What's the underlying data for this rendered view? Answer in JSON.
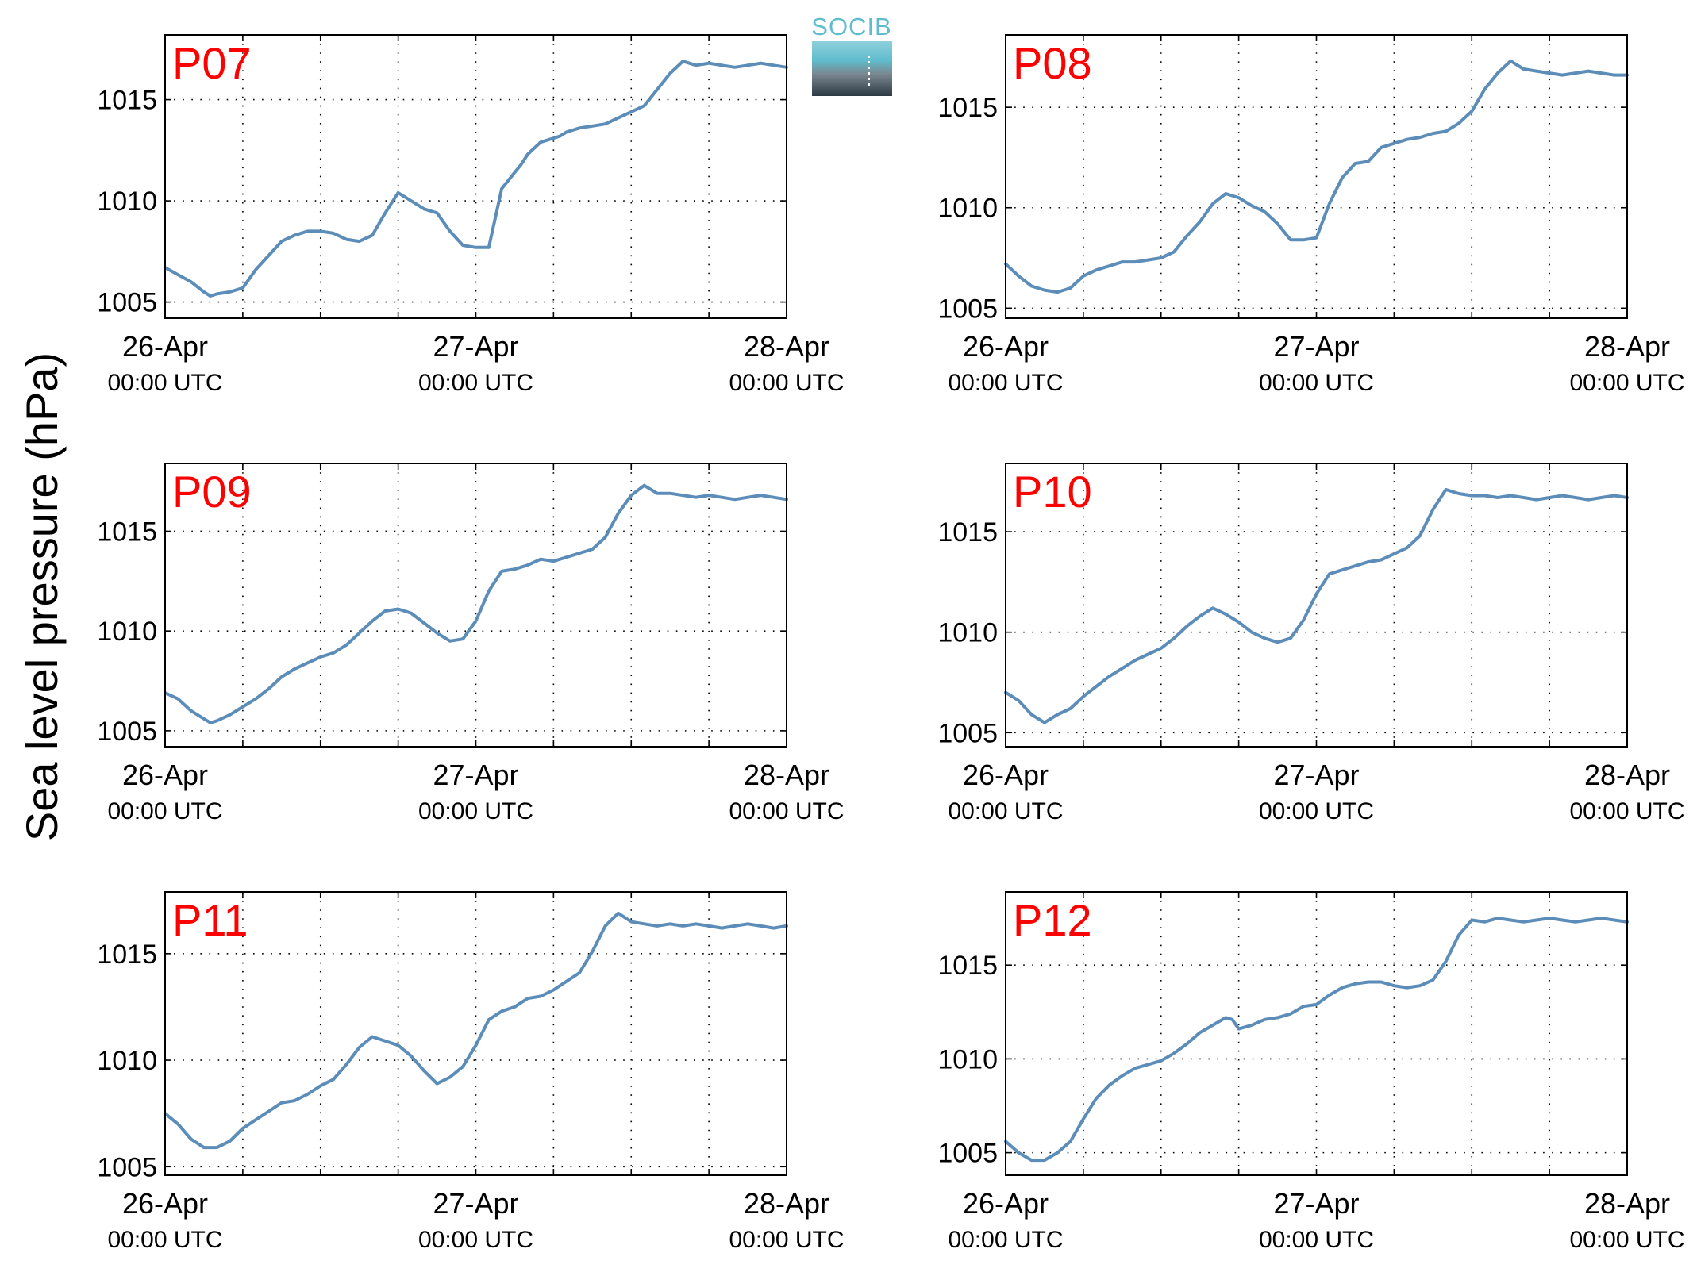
{
  "figure": {
    "ylabel": "Sea level pressure (hPa)",
    "logo_text": "SOCIB"
  },
  "chart_data": [
    {
      "type": "line",
      "panel_label": "P07",
      "xlim": [
        0,
        48
      ],
      "ylim": [
        1004.2,
        1018.2
      ],
      "yticks": [
        1005,
        1010,
        1015
      ],
      "xticks": [
        {
          "x": 0,
          "label": "26-Apr",
          "sublabel": "00:00 UTC"
        },
        {
          "x": 24,
          "label": "27-Apr",
          "sublabel": "00:00 UTC"
        },
        {
          "x": 48,
          "label": "28-Apr",
          "sublabel": "00:00 UTC"
        }
      ],
      "grid": true,
      "color": "#5b8db8",
      "x": [
        0,
        2,
        3,
        3.5,
        4,
        5,
        6,
        7,
        8,
        9,
        10,
        11,
        12,
        13,
        14,
        15,
        16,
        17,
        18,
        19,
        20,
        21,
        22,
        23,
        24,
        25,
        26,
        27,
        27.5,
        28,
        29,
        30,
        30.5,
        31,
        31.5,
        32,
        33,
        34,
        35,
        36,
        37,
        38,
        39,
        40,
        41,
        42,
        43,
        44,
        45,
        46,
        47,
        48
      ],
      "values": [
        1006.7,
        1006,
        1005.5,
        1005.3,
        1005.4,
        1005.5,
        1005.7,
        1006.6,
        1007.3,
        1008,
        1008.3,
        1008.5,
        1008.5,
        1008.4,
        1008.1,
        1008,
        1008.3,
        1009.4,
        1010.4,
        1010,
        1009.6,
        1009.4,
        1008.5,
        1007.8,
        1007.7,
        1007.7,
        1010.6,
        1011.4,
        1011.8,
        1012.3,
        1012.9,
        1013.1,
        1013.2,
        1013.4,
        1013.5,
        1013.6,
        1013.7,
        1013.8,
        1014.1,
        1014.4,
        1014.7,
        1015.5,
        1016.3,
        1016.9,
        1016.7,
        1016.8,
        1016.7,
        1016.6,
        1016.7,
        1016.8,
        1016.7,
        1016.6
      ]
    },
    {
      "type": "line",
      "panel_label": "P08",
      "xlim": [
        0,
        48
      ],
      "ylim": [
        1004.5,
        1018.6
      ],
      "yticks": [
        1005,
        1010,
        1015
      ],
      "xticks": [
        {
          "x": 0,
          "label": "26-Apr",
          "sublabel": "00:00 UTC"
        },
        {
          "x": 24,
          "label": "27-Apr",
          "sublabel": "00:00 UTC"
        },
        {
          "x": 48,
          "label": "28-Apr",
          "sublabel": "00:00 UTC"
        }
      ],
      "grid": true,
      "color": "#5b8db8",
      "x": [
        0,
        1,
        2,
        3,
        4,
        5,
        6,
        7,
        8,
        9,
        10,
        11,
        12,
        13,
        14,
        15,
        16,
        17,
        18,
        19,
        20,
        21,
        22,
        23,
        24,
        25,
        26,
        27,
        28,
        29,
        30,
        31,
        32,
        33,
        34,
        35,
        36,
        37,
        38,
        39,
        40,
        41,
        42,
        43,
        44,
        45,
        46,
        47,
        48
      ],
      "values": [
        1007.2,
        1006.6,
        1006.1,
        1005.9,
        1005.8,
        1006,
        1006.6,
        1006.9,
        1007.1,
        1007.3,
        1007.3,
        1007.4,
        1007.5,
        1007.8,
        1008.6,
        1009.3,
        1010.2,
        1010.7,
        1010.5,
        1010.1,
        1009.8,
        1009.2,
        1008.4,
        1008.4,
        1008.5,
        1010.2,
        1011.5,
        1012.2,
        1012.3,
        1013,
        1013.2,
        1013.4,
        1013.5,
        1013.7,
        1013.8,
        1014.2,
        1014.8,
        1015.9,
        1016.7,
        1017.3,
        1016.9,
        1016.8,
        1016.7,
        1016.6,
        1016.7,
        1016.8,
        1016.7,
        1016.6,
        1016.6
      ]
    },
    {
      "type": "line",
      "panel_label": "P09",
      "xlim": [
        0,
        48
      ],
      "ylim": [
        1004.2,
        1018.4
      ],
      "yticks": [
        1005,
        1010,
        1015
      ],
      "xticks": [
        {
          "x": 0,
          "label": "26-Apr",
          "sublabel": "00:00 UTC"
        },
        {
          "x": 24,
          "label": "27-Apr",
          "sublabel": "00:00 UTC"
        },
        {
          "x": 48,
          "label": "28-Apr",
          "sublabel": "00:00 UTC"
        }
      ],
      "grid": true,
      "color": "#5b8db8",
      "x": [
        0,
        1,
        2,
        3,
        3.5,
        4,
        5,
        6,
        7,
        8,
        9,
        10,
        11,
        12,
        13,
        14,
        15,
        16,
        17,
        18,
        19,
        20,
        21,
        22,
        23,
        24,
        25,
        26,
        27,
        28,
        29,
        30,
        31,
        32,
        33,
        34,
        35,
        36,
        37,
        38,
        39,
        40,
        41,
        42,
        43,
        44,
        45,
        46,
        47,
        48
      ],
      "values": [
        1006.9,
        1006.6,
        1006,
        1005.6,
        1005.4,
        1005.5,
        1005.8,
        1006.2,
        1006.6,
        1007.1,
        1007.7,
        1008.1,
        1008.4,
        1008.7,
        1008.9,
        1009.3,
        1009.9,
        1010.5,
        1011,
        1011.1,
        1010.9,
        1010.4,
        1009.9,
        1009.5,
        1009.6,
        1010.5,
        1012,
        1013,
        1013.1,
        1013.3,
        1013.6,
        1013.5,
        1013.7,
        1013.9,
        1014.1,
        1014.7,
        1015.9,
        1016.8,
        1017.3,
        1016.9,
        1016.9,
        1016.8,
        1016.7,
        1016.8,
        1016.7,
        1016.6,
        1016.7,
        1016.8,
        1016.7,
        1016.6
      ]
    },
    {
      "type": "line",
      "panel_label": "P10",
      "xlim": [
        0,
        48
      ],
      "ylim": [
        1004.3,
        1018.4
      ],
      "yticks": [
        1005,
        1010,
        1015
      ],
      "xticks": [
        {
          "x": 0,
          "label": "26-Apr",
          "sublabel": "00:00 UTC"
        },
        {
          "x": 24,
          "label": "27-Apr",
          "sublabel": "00:00 UTC"
        },
        {
          "x": 48,
          "label": "28-Apr",
          "sublabel": "00:00 UTC"
        }
      ],
      "grid": true,
      "color": "#5b8db8",
      "x": [
        0,
        1,
        2,
        3,
        4,
        5,
        6,
        7,
        8,
        9,
        10,
        11,
        12,
        13,
        14,
        15,
        16,
        17,
        18,
        19,
        20,
        21,
        22,
        23,
        24,
        25,
        26,
        27,
        28,
        29,
        30,
        31,
        32,
        33,
        34,
        35,
        36,
        37,
        38,
        39,
        40,
        41,
        42,
        43,
        44,
        45,
        46,
        47,
        48
      ],
      "values": [
        1007,
        1006.6,
        1005.9,
        1005.5,
        1005.9,
        1006.2,
        1006.8,
        1007.3,
        1007.8,
        1008.2,
        1008.6,
        1008.9,
        1009.2,
        1009.7,
        1010.3,
        1010.8,
        1011.2,
        1010.9,
        1010.5,
        1010,
        1009.7,
        1009.5,
        1009.7,
        1010.6,
        1011.9,
        1012.9,
        1013.1,
        1013.3,
        1013.5,
        1013.6,
        1013.9,
        1014.2,
        1014.8,
        1016.1,
        1017.1,
        1016.9,
        1016.8,
        1016.8,
        1016.7,
        1016.8,
        1016.7,
        1016.6,
        1016.7,
        1016.8,
        1016.7,
        1016.6,
        1016.7,
        1016.8,
        1016.7
      ]
    },
    {
      "type": "line",
      "panel_label": "P11",
      "xlim": [
        0,
        48
      ],
      "ylim": [
        1004.6,
        1017.9
      ],
      "yticks": [
        1005,
        1010,
        1015
      ],
      "xticks": [
        {
          "x": 0,
          "label": "26-Apr",
          "sublabel": "00:00 UTC"
        },
        {
          "x": 24,
          "label": "27-Apr",
          "sublabel": "00:00 UTC"
        },
        {
          "x": 48,
          "label": "28-Apr",
          "sublabel": "00:00 UTC"
        }
      ],
      "grid": true,
      "color": "#5b8db8",
      "x": [
        0,
        1,
        2,
        3,
        4,
        5,
        6,
        7,
        8,
        9,
        10,
        11,
        12,
        13,
        14,
        15,
        16,
        17,
        18,
        19,
        20,
        21,
        22,
        23,
        24,
        25,
        26,
        27,
        28,
        29,
        30,
        31,
        32,
        33,
        34,
        35,
        36,
        37,
        38,
        39,
        40,
        41,
        42,
        43,
        44,
        45,
        46,
        47,
        48
      ],
      "values": [
        1007.5,
        1007,
        1006.3,
        1005.9,
        1005.9,
        1006.2,
        1006.8,
        1007.2,
        1007.6,
        1008,
        1008.1,
        1008.4,
        1008.8,
        1009.1,
        1009.8,
        1010.6,
        1011.1,
        1010.9,
        1010.7,
        1010.2,
        1009.5,
        1008.9,
        1009.2,
        1009.7,
        1010.7,
        1011.9,
        1012.3,
        1012.5,
        1012.9,
        1013,
        1013.3,
        1013.7,
        1014.1,
        1015.1,
        1016.3,
        1016.9,
        1016.5,
        1016.4,
        1016.3,
        1016.4,
        1016.3,
        1016.4,
        1016.3,
        1016.2,
        1016.3,
        1016.4,
        1016.3,
        1016.2,
        1016.3
      ]
    },
    {
      "type": "line",
      "panel_label": "P12",
      "xlim": [
        0,
        48
      ],
      "ylim": [
        1003.8,
        1018.9
      ],
      "yticks": [
        1005,
        1010,
        1015
      ],
      "xticks": [
        {
          "x": 0,
          "label": "26-Apr",
          "sublabel": "00:00 UTC"
        },
        {
          "x": 24,
          "label": "27-Apr",
          "sublabel": "00:00 UTC"
        },
        {
          "x": 48,
          "label": "28-Apr",
          "sublabel": "00:00 UTC"
        }
      ],
      "grid": true,
      "color": "#5b8db8",
      "x": [
        0,
        1,
        2,
        3,
        4,
        5,
        6,
        7,
        8,
        9,
        10,
        11,
        12,
        13,
        14,
        15,
        16,
        17,
        17.5,
        18,
        19,
        20,
        21,
        22,
        23,
        24,
        25,
        26,
        27,
        28,
        29,
        30,
        31,
        32,
        33,
        34,
        35,
        36,
        37,
        38,
        39,
        40,
        41,
        42,
        43,
        44,
        45,
        46,
        47,
        48
      ],
      "values": [
        1005.6,
        1005,
        1004.6,
        1004.6,
        1005,
        1005.6,
        1006.8,
        1007.9,
        1008.6,
        1009.1,
        1009.5,
        1009.7,
        1009.9,
        1010.3,
        1010.8,
        1011.4,
        1011.8,
        1012.2,
        1012.1,
        1011.6,
        1011.8,
        1012.1,
        1012.2,
        1012.4,
        1012.8,
        1012.9,
        1013.4,
        1013.8,
        1014,
        1014.1,
        1014.1,
        1013.9,
        1013.8,
        1013.9,
        1014.2,
        1015.2,
        1016.6,
        1017.4,
        1017.3,
        1017.5,
        1017.4,
        1017.3,
        1017.4,
        1017.5,
        1017.4,
        1017.3,
        1017.4,
        1017.5,
        1017.4,
        1017.3
      ]
    }
  ]
}
